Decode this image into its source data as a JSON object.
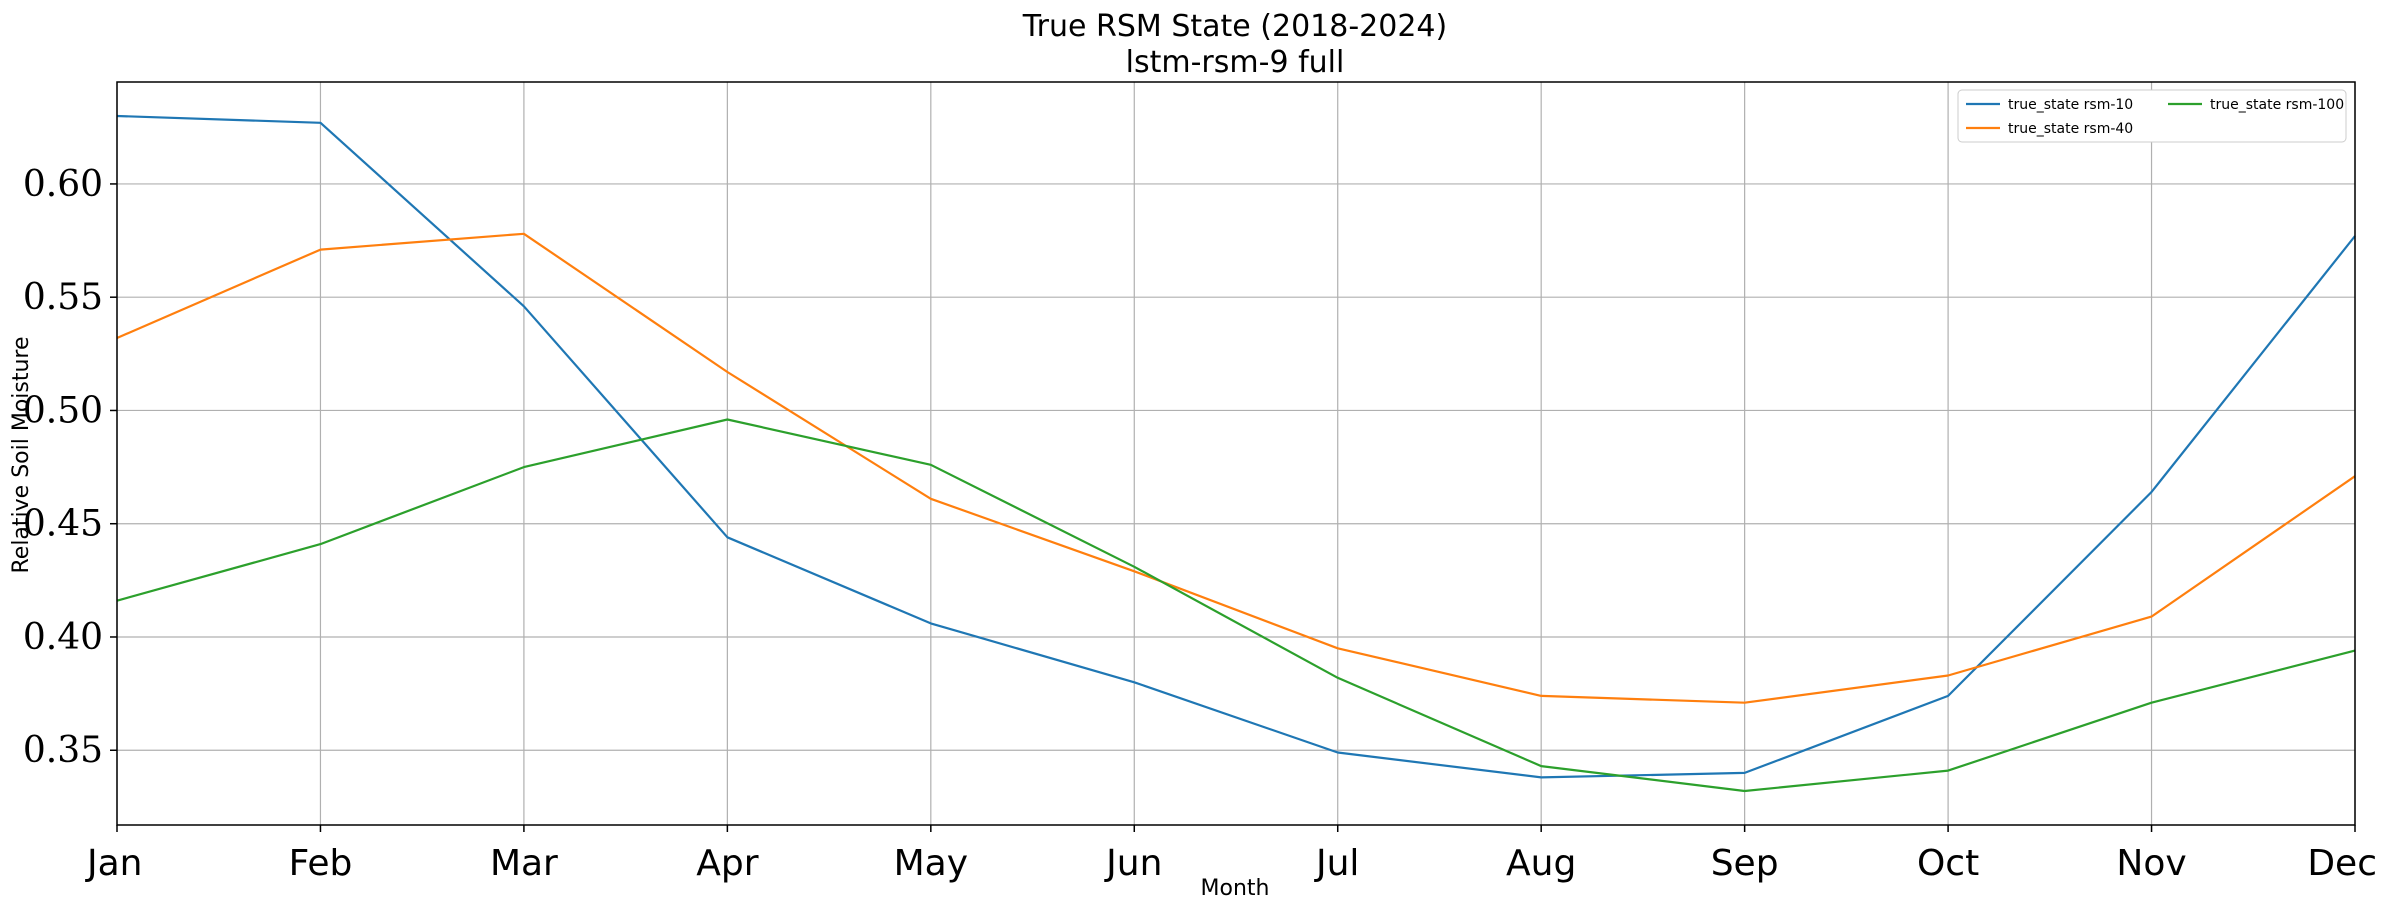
{
  "chart_data": {
    "type": "line",
    "title": "True RSM State (2018-2024)",
    "subtitle": "lstm-rsm-9 full",
    "xlabel": "Month",
    "ylabel": "Relative Soil Moisture",
    "categories": [
      "Jan",
      "Feb",
      "Mar",
      "Apr",
      "May",
      "Jun",
      "Jul",
      "Aug",
      "Sep",
      "Oct",
      "Nov",
      "Dec"
    ],
    "yticks": [
      0.35,
      0.4,
      0.45,
      0.5,
      0.55,
      0.6
    ],
    "ytick_labels": [
      "0.35",
      "0.40",
      "0.45",
      "0.50",
      "0.55",
      "0.60"
    ],
    "ylim": [
      0.317,
      0.645
    ],
    "grid": true,
    "legend_position": "upper-right",
    "series": [
      {
        "name": "true_state rsm-10",
        "color": "#1f77b4",
        "values": [
          0.63,
          0.627,
          0.546,
          0.444,
          0.406,
          0.38,
          0.349,
          0.338,
          0.34,
          0.374,
          0.464,
          0.577
        ]
      },
      {
        "name": "true_state rsm-40",
        "color": "#ff7f0e",
        "values": [
          0.532,
          0.571,
          0.578,
          0.517,
          0.461,
          0.429,
          0.395,
          0.374,
          0.371,
          0.383,
          0.409,
          0.471
        ]
      },
      {
        "name": "true_state rsm-100",
        "color": "#2ca02c",
        "values": [
          0.416,
          0.441,
          0.475,
          0.496,
          0.476,
          0.431,
          0.382,
          0.343,
          0.332,
          0.341,
          0.371,
          0.394
        ]
      }
    ]
  }
}
